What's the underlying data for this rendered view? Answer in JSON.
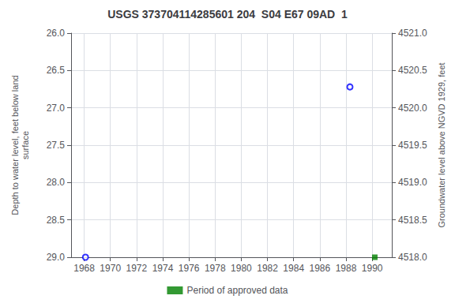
{
  "chart_data": {
    "type": "scatter",
    "title": "USGS 373704114285601 204  S04 E67 09AD  1",
    "ylabel": "Depth to water level, feet below land\nsurface",
    "y2label": "Groundwater level above NGVD 1929, feet",
    "xlim": [
      1967.0,
      1991.5
    ],
    "xticks": [
      1968,
      1970,
      1972,
      1974,
      1976,
      1978,
      1980,
      1982,
      1984,
      1986,
      1988,
      1990
    ],
    "ylim": [
      29.0,
      26.0
    ],
    "yticks": [
      {
        "value": 26,
        "label": "26.0"
      },
      26.5,
      {
        "value": 27,
        "label": "27.0"
      },
      27.5,
      {
        "value": 28,
        "label": "28.0"
      },
      28.5,
      {
        "value": 29,
        "label": "29.0"
      }
    ],
    "y2lim": [
      4518.0,
      4521.0
    ],
    "y2ticks": [
      {
        "value": 4521,
        "label": "4521.0"
      },
      4520.5,
      {
        "value": 4520,
        "label": "4520.0"
      },
      4519.5,
      {
        "value": 4519,
        "label": "4519.0"
      },
      4518.5,
      {
        "value": 4518,
        "label": "4518.0"
      }
    ],
    "grid": true,
    "legend": "bottom",
    "series": [
      {
        "color": "blue",
        "marker": "open_circle",
        "x": [
          1968.1,
          1988.3
        ],
        "values": [
          29.0,
          26.72
        ]
      },
      {
        "name": "Period of approved data",
        "color": "#008000",
        "marker": "square",
        "x": [
          1990.2
        ],
        "values": [
          29.0
        ]
      }
    ]
  }
}
